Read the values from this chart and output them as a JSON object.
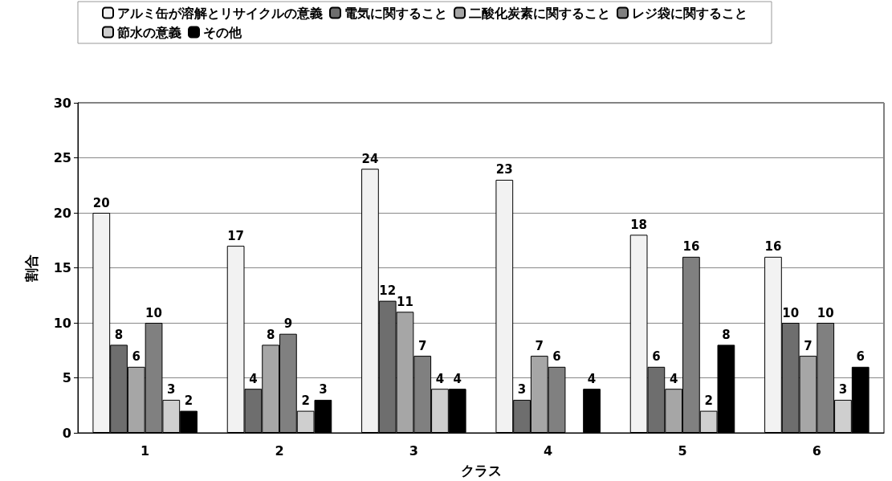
{
  "chart_data": {
    "type": "bar",
    "xlabel": "クラス",
    "ylabel": "割合",
    "categories": [
      "1",
      "2",
      "3",
      "4",
      "5",
      "6"
    ],
    "series": [
      {
        "name": "アルミ缶が溶解とリサイクルの意義",
        "color": "#f2f2f2",
        "values": [
          20,
          17,
          24,
          23,
          18,
          16
        ]
      },
      {
        "name": "電気に関すること",
        "color": "#6e6e6e",
        "values": [
          8,
          4,
          12,
          3,
          6,
          10
        ]
      },
      {
        "name": "二酸化炭素に関すること",
        "color": "#a6a6a6",
        "values": [
          6,
          8,
          11,
          7,
          4,
          7
        ]
      },
      {
        "name": "レジ袋に関すること",
        "color": "#808080",
        "values": [
          10,
          9,
          7,
          6,
          16,
          10
        ]
      },
      {
        "name": "節水の意義",
        "color": "#cfcfcf",
        "values": [
          3,
          2,
          4,
          null,
          2,
          3
        ]
      },
      {
        "name": "その他",
        "color": "#000000",
        "values": [
          2,
          3,
          4,
          4,
          8,
          6
        ]
      }
    ],
    "ylim": [
      0,
      30
    ],
    "yticks": [
      0,
      5,
      10,
      15,
      20,
      25,
      30
    ],
    "grid": "y",
    "legend": "top",
    "data_labels": true
  }
}
